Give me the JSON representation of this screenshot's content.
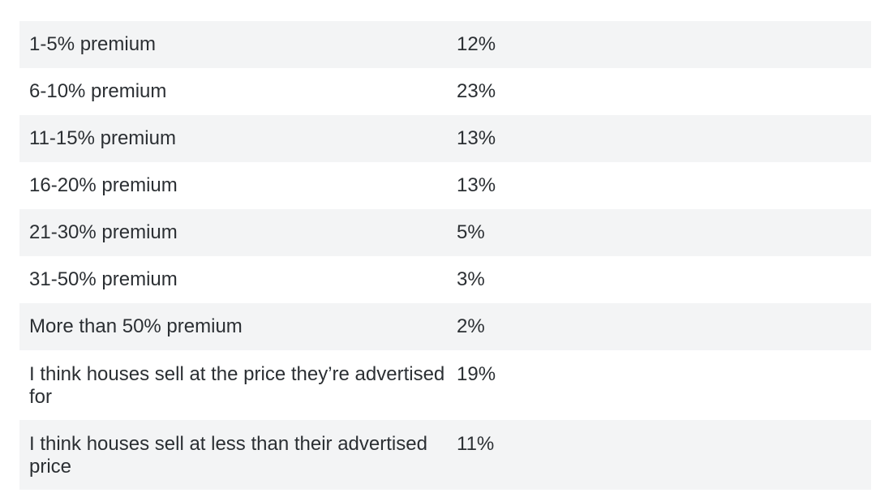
{
  "table": {
    "rows": [
      {
        "label": "1-5% premium",
        "value": "12%"
      },
      {
        "label": "6-10% premium",
        "value": "23%"
      },
      {
        "label": "11-15% premium",
        "value": "13%"
      },
      {
        "label": "16-20% premium",
        "value": "13%"
      },
      {
        "label": "21-30% premium",
        "value": "5%"
      },
      {
        "label": "31-50% premium",
        "value": "3%"
      },
      {
        "label": "More than 50% premium",
        "value": "2%"
      },
      {
        "label": "I think houses sell at the price they’re advertised for",
        "value": "19%"
      },
      {
        "label": "I think houses sell at less than their advertised price",
        "value": "11%"
      }
    ]
  }
}
